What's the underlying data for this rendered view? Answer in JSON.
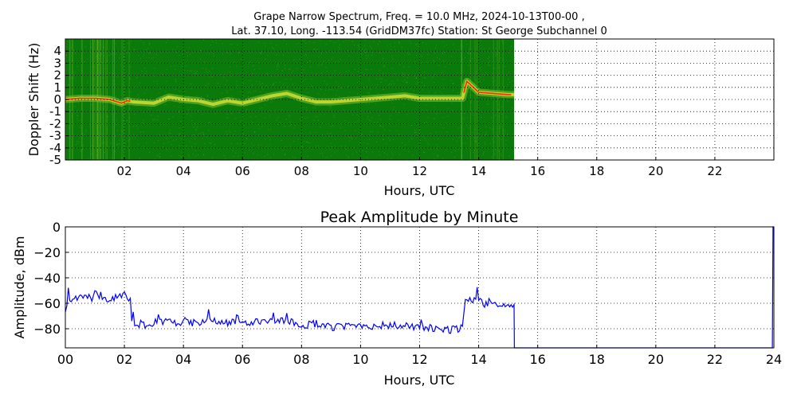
{
  "figure": {
    "title_line1": "Grape Narrow Spectrum, Freq. = 10.0 MHz, 2024-10-13T00-00 ,",
    "title_line2": "Lat.  37.10, Long. -113.54 (GridDM37fc) Station: St George Subchannel 0"
  },
  "chart_data": [
    {
      "type": "heatmap",
      "title": "",
      "xlabel": "Hours, UTC",
      "ylabel": "Doppler Shift (Hz)",
      "xlim": [
        0,
        24
      ],
      "ylim": [
        -5,
        5
      ],
      "x_ticks": [
        2,
        4,
        6,
        8,
        10,
        12,
        14,
        16,
        18,
        20,
        22
      ],
      "x_tick_labels": [
        "02",
        "04",
        "06",
        "08",
        "10",
        "12",
        "14",
        "16",
        "18",
        "20",
        "22"
      ],
      "y_ticks": [
        4,
        3,
        2,
        1,
        0,
        -1,
        -2,
        -3,
        -4,
        -5
      ],
      "y_tick_labels": [
        "4",
        "3",
        "2",
        "1",
        "0",
        "-1",
        "-2",
        "-3",
        "-4",
        "-5"
      ],
      "data_extent_hours": [
        0,
        15.2
      ],
      "grid": true,
      "colors": {
        "background": "#0a7a0a",
        "mid": "#c8dc32",
        "peak": "#ff2800"
      },
      "ridge": {
        "hours": [
          0,
          0.5,
          1.0,
          1.5,
          1.9,
          2.1,
          2.3,
          3.0,
          3.5,
          4.0,
          4.5,
          5.0,
          5.5,
          6.0,
          6.5,
          7.0,
          7.5,
          8.0,
          8.5,
          9.0,
          9.5,
          10.0,
          10.5,
          11.0,
          11.5,
          12.0,
          12.5,
          13.0,
          13.45,
          13.6,
          14.0,
          14.5,
          15.0,
          15.2
        ],
        "doppler": [
          0,
          0.1,
          0.1,
          0.0,
          -0.3,
          -0.1,
          -0.2,
          -0.3,
          0.2,
          0.0,
          -0.1,
          -0.4,
          -0.1,
          -0.3,
          0.0,
          0.3,
          0.5,
          0.1,
          -0.2,
          -0.2,
          -0.1,
          0.0,
          0.1,
          0.2,
          0.3,
          0.1,
          0.1,
          0.1,
          0.1,
          1.5,
          0.6,
          0.5,
          0.4,
          0.4
        ]
      }
    },
    {
      "type": "line",
      "title": "Peak Amplitude by Minute",
      "xlabel": "Hours, UTC",
      "ylabel": "Amplitude, dBm",
      "xlim": [
        0,
        24
      ],
      "ylim": [
        -95,
        0
      ],
      "x_ticks": [
        0,
        2,
        4,
        6,
        8,
        10,
        12,
        14,
        16,
        18,
        20,
        22,
        24
      ],
      "x_tick_labels": [
        "00",
        "02",
        "04",
        "06",
        "08",
        "10",
        "12",
        "14",
        "16",
        "18",
        "20",
        "22",
        "24"
      ],
      "y_ticks": [
        0,
        -20,
        -40,
        -60,
        -80
      ],
      "y_tick_labels": [
        "0",
        "−20",
        "−40",
        "−60",
        "−80"
      ],
      "grid": true,
      "series": [
        {
          "color": "#0000ff",
          "x": [
            0,
            0.1,
            0.3,
            0.5,
            0.7,
            0.9,
            1.0,
            1.2,
            1.4,
            1.6,
            1.8,
            2.0,
            2.1,
            2.2,
            2.25,
            2.3,
            2.5,
            2.8,
            3.0,
            3.2,
            3.5,
            3.8,
            4.0,
            4.2,
            4.5,
            5.0,
            5.5,
            6.0,
            6.5,
            7.0,
            7.5,
            8.0,
            8.5,
            8.8,
            9.0,
            9.5,
            10.0,
            10.5,
            11.0,
            11.5,
            12.0,
            12.5,
            13.0,
            13.3,
            13.45,
            13.55,
            13.7,
            14.0,
            14.2,
            14.4,
            14.6,
            14.8,
            15.0,
            15.2,
            15.21,
            16,
            18,
            20,
            22,
            23.95,
            23.97,
            24
          ],
          "y": [
            -65,
            -57,
            -55,
            -56,
            -53,
            -58,
            -52,
            -54,
            -57,
            -55,
            -56,
            -53,
            -58,
            -56,
            -75,
            -77,
            -76,
            -77,
            -75,
            -74,
            -75,
            -77,
            -73,
            -76,
            -75,
            -74,
            -75,
            -76,
            -74,
            -75,
            -74,
            -77,
            -76,
            -78,
            -79,
            -78,
            -77,
            -78,
            -77,
            -78,
            -79,
            -80,
            -81,
            -80,
            -78,
            -58,
            -56,
            -58,
            -62,
            -57,
            -62,
            -61,
            -60,
            -61,
            -95,
            -95,
            -95,
            -95,
            -95,
            -95,
            0,
            0
          ]
        }
      ]
    }
  ]
}
